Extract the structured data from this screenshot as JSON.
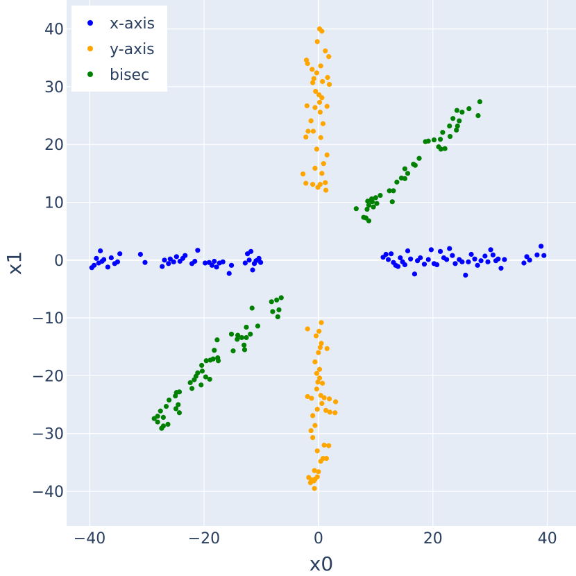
{
  "chart_data": {
    "type": "scatter",
    "title": "",
    "xlabel": "x0",
    "ylabel": "x1",
    "xlim": [
      -44,
      45
    ],
    "ylim": [
      -46,
      45
    ],
    "xticks": [
      -40,
      -20,
      0,
      20,
      40
    ],
    "yticks": [
      -40,
      -30,
      -20,
      -10,
      0,
      10,
      20,
      30,
      40
    ],
    "xtick_labels": [
      "−40",
      "−20",
      "0",
      "20",
      "40"
    ],
    "ytick_labels": [
      "−40",
      "−30",
      "−20",
      "−10",
      "0",
      "10",
      "20",
      "30",
      "40"
    ],
    "grid": true,
    "plot_background": "#e5ecf6",
    "legend_position": "top-left",
    "series": [
      {
        "name": "x-axis",
        "color": "#0000ff",
        "points": [
          [
            -39.6,
            -1.3
          ],
          [
            -39.2,
            -0.9
          ],
          [
            -38.8,
            0.3
          ],
          [
            -38.4,
            -0.5
          ],
          [
            -38.1,
            1.6
          ],
          [
            -37.8,
            -0.2
          ],
          [
            -37.5,
            0.1
          ],
          [
            -36.8,
            -1.2
          ],
          [
            -36.2,
            0.4
          ],
          [
            -35.6,
            -0.6
          ],
          [
            -35.1,
            -0.3
          ],
          [
            -34.7,
            1.1
          ],
          [
            -31.1,
            1.0
          ],
          [
            -30.3,
            -0.4
          ],
          [
            -27.3,
            -1.1
          ],
          [
            -26.9,
            0.0
          ],
          [
            -26.2,
            -0.6
          ],
          [
            -25.9,
            0.2
          ],
          [
            -25.3,
            -0.3
          ],
          [
            -24.8,
            0.6
          ],
          [
            -24.2,
            -0.2
          ],
          [
            -23.7,
            0.3
          ],
          [
            -23.3,
            0.8
          ],
          [
            -22.1,
            -0.6
          ],
          [
            -21.6,
            -0.2
          ],
          [
            -21.1,
            1.7
          ],
          [
            -19.8,
            -0.5
          ],
          [
            -19.1,
            -0.4
          ],
          [
            -18.6,
            -0.9
          ],
          [
            -18.2,
            -0.2
          ],
          [
            -17.8,
            -1.2
          ],
          [
            -17.3,
            -0.5
          ],
          [
            -16.7,
            -0.3
          ],
          [
            -15.6,
            -2.3
          ],
          [
            -15.2,
            -0.9
          ],
          [
            -12.8,
            -0.5
          ],
          [
            -12.4,
            1.1
          ],
          [
            -12.1,
            0.0
          ],
          [
            -11.8,
            1.5
          ],
          [
            -11.5,
            -1.7
          ],
          [
            -11.2,
            -0.6
          ],
          [
            -10.9,
            -0.1
          ],
          [
            -10.4,
            0.3
          ],
          [
            -10.1,
            -0.4
          ],
          [
            11.3,
            0.5
          ],
          [
            11.8,
            1.0
          ],
          [
            12.2,
            0.1
          ],
          [
            12.7,
            1.1
          ],
          [
            13.1,
            -0.4
          ],
          [
            13.5,
            -0.9
          ],
          [
            13.9,
            -1.1
          ],
          [
            14.3,
            0.4
          ],
          [
            14.7,
            -0.3
          ],
          [
            15.1,
            -0.8
          ],
          [
            15.6,
            1.6
          ],
          [
            16.1,
            0.2
          ],
          [
            16.8,
            -2.4
          ],
          [
            17.3,
            -0.1
          ],
          [
            17.8,
            0.4
          ],
          [
            18.5,
            -0.7
          ],
          [
            19.2,
            0.1
          ],
          [
            19.7,
            1.8
          ],
          [
            20.2,
            -0.6
          ],
          [
            20.7,
            -0.8
          ],
          [
            21.3,
            1.5
          ],
          [
            21.9,
            0.4
          ],
          [
            22.4,
            0.1
          ],
          [
            22.9,
            2.0
          ],
          [
            23.4,
            0.8
          ],
          [
            23.9,
            -0.6
          ],
          [
            24.6,
            0.1
          ],
          [
            25.1,
            -0.3
          ],
          [
            25.7,
            -2.6
          ],
          [
            26.2,
            -0.3
          ],
          [
            26.7,
            1.0
          ],
          [
            27.3,
            0.2
          ],
          [
            27.8,
            -0.9
          ],
          [
            28.4,
            -0.1
          ],
          [
            29.1,
            0.7
          ],
          [
            29.6,
            -0.3
          ],
          [
            30.1,
            1.8
          ],
          [
            30.5,
            0.9
          ],
          [
            31.0,
            -0.1
          ],
          [
            31.4,
            0.2
          ],
          [
            31.9,
            -1.4
          ],
          [
            32.5,
            0.1
          ],
          [
            35.9,
            -0.5
          ],
          [
            36.4,
            0.6
          ],
          [
            36.9,
            0.0
          ],
          [
            38.2,
            0.9
          ],
          [
            38.9,
            2.4
          ],
          [
            39.4,
            0.8
          ]
        ]
      },
      {
        "name": "y-axis",
        "color": "#ffa500",
        "points": [
          [
            0.2,
            40.0
          ],
          [
            0.6,
            39.6
          ],
          [
            -0.2,
            37.8
          ],
          [
            1.2,
            36.2
          ],
          [
            1.8,
            35.2
          ],
          [
            -2.1,
            34.6
          ],
          [
            -1.9,
            34.0
          ],
          [
            -0.3,
            32.4
          ],
          [
            0.4,
            33.6
          ],
          [
            -1.1,
            33.0
          ],
          [
            -0.8,
            31.4
          ],
          [
            -1.0,
            30.7
          ],
          [
            0.7,
            30.9
          ],
          [
            1.6,
            31.6
          ],
          [
            1.9,
            30.4
          ],
          [
            -0.5,
            29.2
          ],
          [
            0.1,
            28.6
          ],
          [
            -2.0,
            26.7
          ],
          [
            -0.6,
            26.4
          ],
          [
            0.2,
            27.3
          ],
          [
            0.6,
            28.1
          ],
          [
            1.5,
            26.6
          ],
          [
            0.3,
            25.6
          ],
          [
            -1.3,
            24.1
          ],
          [
            0.8,
            23.6
          ],
          [
            -2.2,
            21.3
          ],
          [
            -1.8,
            22.3
          ],
          [
            -0.9,
            22.3
          ],
          [
            0.4,
            21.2
          ],
          [
            -0.3,
            19.2
          ],
          [
            1.5,
            18.2
          ],
          [
            0.9,
            16.7
          ],
          [
            -0.6,
            15.9
          ],
          [
            0.6,
            15.0
          ],
          [
            -2.7,
            14.9
          ],
          [
            -2.2,
            13.3
          ],
          [
            -1.0,
            13.1
          ],
          [
            -0.1,
            12.6
          ],
          [
            0.3,
            13.1
          ],
          [
            1.2,
            13.4
          ],
          [
            1.3,
            12.1
          ],
          [
            0.5,
            -10.8
          ],
          [
            0.1,
            -12.3
          ],
          [
            -1.9,
            -11.9
          ],
          [
            -0.4,
            -13.1
          ],
          [
            0.5,
            -14.4
          ],
          [
            0.3,
            -15.1
          ],
          [
            1.5,
            -15.3
          ],
          [
            0.0,
            -16.0
          ],
          [
            -0.6,
            -17.6
          ],
          [
            0.2,
            -18.9
          ],
          [
            -0.3,
            -19.6
          ],
          [
            0.2,
            -20.4
          ],
          [
            -0.1,
            -21.1
          ],
          [
            0.7,
            -21.3
          ],
          [
            -0.3,
            -22.3
          ],
          [
            -1.2,
            -23.9
          ],
          [
            -1.9,
            -23.6
          ],
          [
            0.4,
            -23.4
          ],
          [
            1.0,
            -23.8
          ],
          [
            1.9,
            -24.0
          ],
          [
            -0.2,
            -25.8
          ],
          [
            3.0,
            -24.5
          ],
          [
            0.6,
            -24.8
          ],
          [
            1.3,
            -26.0
          ],
          [
            2.0,
            -26.3
          ],
          [
            2.9,
            -26.4
          ],
          [
            -1.0,
            -26.9
          ],
          [
            -0.6,
            -28.6
          ],
          [
            -1.3,
            -29.5
          ],
          [
            -1.0,
            -30.7
          ],
          [
            1.0,
            -32.0
          ],
          [
            1.8,
            -32.1
          ],
          [
            -0.2,
            -33.0
          ],
          [
            0.4,
            -34.8
          ],
          [
            0.8,
            -34.3
          ],
          [
            1.4,
            -34.3
          ],
          [
            -0.7,
            -36.4
          ],
          [
            0.0,
            -36.6
          ],
          [
            -1.7,
            -37.6
          ],
          [
            -1.2,
            -38.0
          ],
          [
            -0.6,
            -37.9
          ],
          [
            -0.2,
            -37.5
          ],
          [
            -1.4,
            -38.5
          ],
          [
            -0.8,
            -38.2
          ],
          [
            -0.7,
            -39.5
          ]
        ]
      },
      {
        "name": "bisec",
        "color": "#008000",
        "points": [
          [
            28.2,
            27.4
          ],
          [
            26.3,
            26.2
          ],
          [
            24.2,
            25.9
          ],
          [
            25.1,
            25.6
          ],
          [
            23.5,
            24.5
          ],
          [
            24.6,
            24.1
          ],
          [
            22.9,
            23.2
          ],
          [
            24.3,
            23.2
          ],
          [
            24.1,
            22.5
          ],
          [
            27.9,
            25.0
          ],
          [
            21.7,
            22.1
          ],
          [
            21.3,
            20.9
          ],
          [
            20.2,
            20.8
          ],
          [
            23.0,
            21.4
          ],
          [
            18.7,
            20.5
          ],
          [
            19.2,
            20.6
          ],
          [
            21.0,
            19.6
          ],
          [
            21.4,
            19.2
          ],
          [
            22.1,
            19.3
          ],
          [
            17.6,
            17.6
          ],
          [
            16.9,
            16.4
          ],
          [
            16.6,
            16.6
          ],
          [
            15.1,
            15.8
          ],
          [
            15.6,
            15.0
          ],
          [
            15.1,
            14.1
          ],
          [
            14.5,
            14.2
          ],
          [
            13.7,
            13.5
          ],
          [
            13.1,
            12.0
          ],
          [
            12.4,
            12.0
          ],
          [
            10.8,
            11.2
          ],
          [
            10.0,
            10.8
          ],
          [
            9.3,
            10.6
          ],
          [
            9.4,
            10.1
          ],
          [
            8.6,
            10.2
          ],
          [
            10.2,
            9.8
          ],
          [
            12.9,
            10.1
          ],
          [
            8.8,
            9.5
          ],
          [
            9.6,
            9.2
          ],
          [
            8.5,
            8.8
          ],
          [
            6.6,
            8.9
          ],
          [
            8.3,
            7.3
          ],
          [
            7.9,
            7.4
          ],
          [
            8.8,
            6.8
          ],
          [
            -6.5,
            -6.5
          ],
          [
            -7.3,
            -6.9
          ],
          [
            -8.2,
            -7.2
          ],
          [
            -6.9,
            -8.6
          ],
          [
            -8.0,
            -8.9
          ],
          [
            -11.6,
            -8.3
          ],
          [
            -7.1,
            -9.8
          ],
          [
            -10.6,
            -11.4
          ],
          [
            -12.6,
            -11.6
          ],
          [
            -11.9,
            -12.8
          ],
          [
            -14.1,
            -13.0
          ],
          [
            -15.2,
            -12.8
          ],
          [
            -13.4,
            -13.4
          ],
          [
            -14.2,
            -13.7
          ],
          [
            -17.7,
            -13.8
          ],
          [
            -12.6,
            -13.4
          ],
          [
            -13.0,
            -14.7
          ],
          [
            -12.9,
            -15.5
          ],
          [
            -14.9,
            -15.7
          ],
          [
            -18.2,
            -15.6
          ],
          [
            -17.6,
            -16.9
          ],
          [
            -18.4,
            -17.1
          ],
          [
            -17.5,
            -17.4
          ],
          [
            -18.9,
            -17.3
          ],
          [
            -19.6,
            -17.4
          ],
          [
            -20.4,
            -18.2
          ],
          [
            -21.1,
            -19.5
          ],
          [
            -20.3,
            -19.2
          ],
          [
            -21.4,
            -20.1
          ],
          [
            -19.7,
            -20.2
          ],
          [
            -19.0,
            -20.6
          ],
          [
            -20.5,
            -21.6
          ],
          [
            -21.7,
            -20.7
          ],
          [
            -22.4,
            -21.2
          ],
          [
            -22.1,
            -22.2
          ],
          [
            -24.3,
            -22.8
          ],
          [
            -24.8,
            -22.9
          ],
          [
            -25.0,
            -23.5
          ],
          [
            -24.5,
            -25.0
          ],
          [
            -26.1,
            -24.2
          ],
          [
            -26.6,
            -25.3
          ],
          [
            -24.9,
            -25.7
          ],
          [
            -24.3,
            -26.4
          ],
          [
            -27.6,
            -26.1
          ],
          [
            -27.1,
            -27.2
          ],
          [
            -28.1,
            -27.0
          ],
          [
            -28.7,
            -27.4
          ],
          [
            -28.1,
            -28.0
          ],
          [
            -27.1,
            -28.7
          ],
          [
            -26.3,
            -28.4
          ],
          [
            -27.4,
            -29.1
          ]
        ]
      }
    ]
  }
}
